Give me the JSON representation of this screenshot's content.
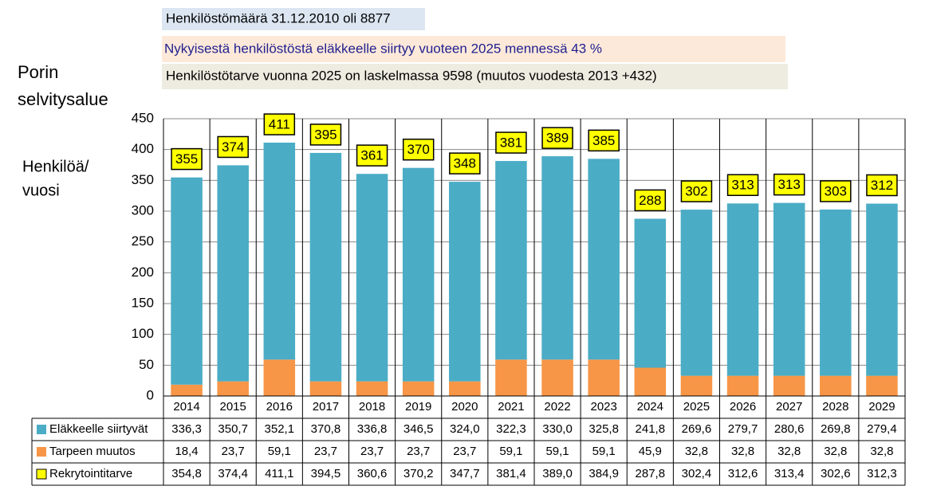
{
  "chart_data": {
    "type": "bar",
    "title": [
      "Porin",
      "selvitysalue"
    ],
    "ylabel": [
      "Henkilöä/",
      "vuosi"
    ],
    "annotations": [
      "Henkilöstömäärä 31.12.2010 oli 8877",
      "Nykyisestä henkilöstöstä eläkkeelle siirtyy vuoteen 2025 mennessä 43 %",
      "Henkilöstötarve vuonna 2025 on laskelmassa 9598 (muutos vuodesta 2013 +432)"
    ],
    "categories": [
      "2014",
      "2015",
      "2016",
      "2017",
      "2018",
      "2019",
      "2020",
      "2021",
      "2022",
      "2023",
      "2024",
      "2025",
      "2026",
      "2027",
      "2028",
      "2029"
    ],
    "ylim": [
      0,
      450
    ],
    "yticks": [
      0,
      50,
      100,
      150,
      200,
      250,
      300,
      350,
      400,
      450
    ],
    "grid": true,
    "series": [
      {
        "name": "Eläkkeelle siirtyvät",
        "color": "#4bacc6",
        "values": [
          336.3,
          350.7,
          352.1,
          370.8,
          336.8,
          346.5,
          324.0,
          322.3,
          330.0,
          325.8,
          241.8,
          269.6,
          279.7,
          280.6,
          269.8,
          279.4
        ],
        "value_labels": [
          "336,3",
          "350,7",
          "352,1",
          "370,8",
          "336,8",
          "346,5",
          "324,0",
          "322,3",
          "330,0",
          "325,8",
          "241,8",
          "269,6",
          "279,7",
          "280,6",
          "269,8",
          "279,4"
        ]
      },
      {
        "name": "Tarpeen muutos",
        "color": "#f79646",
        "values": [
          18.4,
          23.7,
          59.1,
          23.7,
          23.7,
          23.7,
          23.7,
          59.1,
          59.1,
          59.1,
          45.9,
          32.8,
          32.8,
          32.8,
          32.8,
          32.8
        ],
        "value_labels": [
          "18,4",
          "23,7",
          "59,1",
          "23,7",
          "23,7",
          "23,7",
          "23,7",
          "59,1",
          "59,1",
          "59,1",
          "45,9",
          "32,8",
          "32,8",
          "32,8",
          "32,8",
          "32,8"
        ]
      },
      {
        "name": "Rekrytointitarve",
        "color": "#ffff00",
        "values": [
          354.8,
          374.4,
          411.1,
          394.5,
          360.6,
          370.2,
          347.7,
          381.4,
          389.0,
          384.9,
          287.8,
          302.4,
          312.6,
          313.4,
          302.6,
          312.3
        ],
        "value_labels": [
          "354,8",
          "374,4",
          "411,1",
          "394,5",
          "360,6",
          "370,2",
          "347,7",
          "381,4",
          "389,0",
          "384,9",
          "287,8",
          "302,4",
          "312,6",
          "313,4",
          "302,6",
          "312,3"
        ],
        "data_labels": [
          "355",
          "374",
          "411",
          "395",
          "361",
          "370",
          "348",
          "381",
          "389",
          "385",
          "288",
          "302",
          "313",
          "313",
          "303",
          "312"
        ]
      }
    ]
  }
}
